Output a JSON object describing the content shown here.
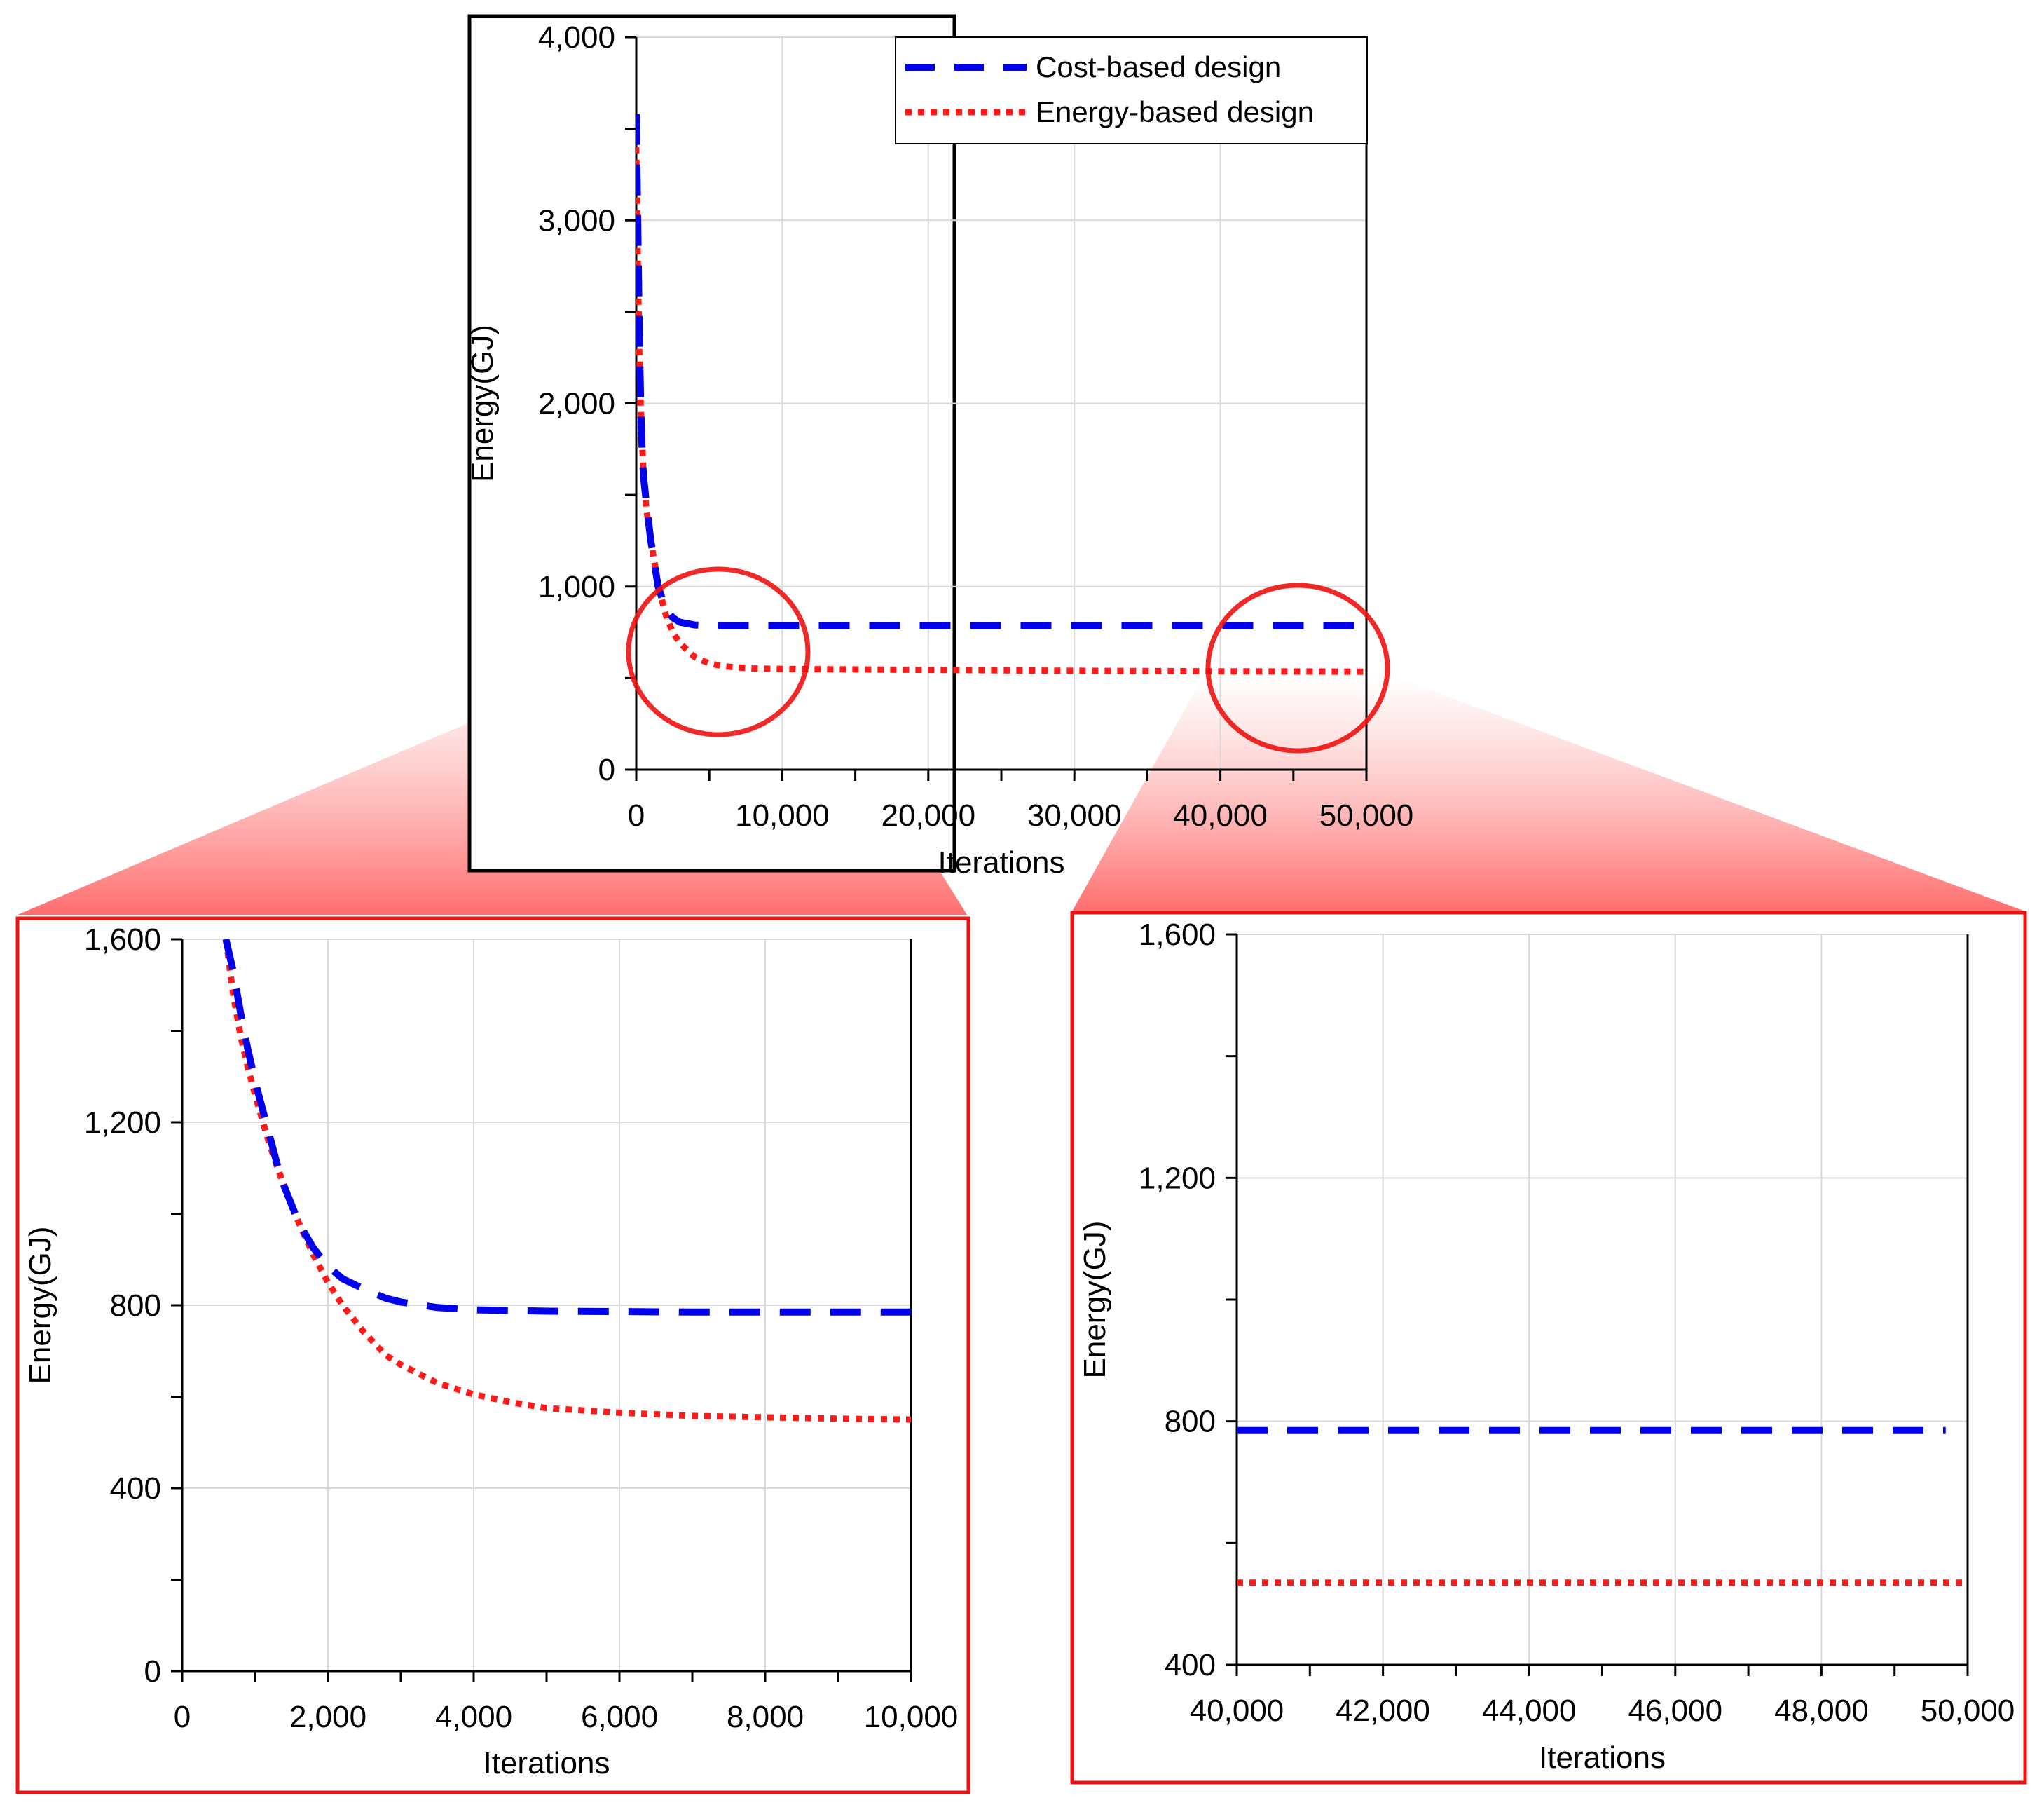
{
  "colors": {
    "cost": "#0000ee",
    "energy": "#ff1a1a",
    "frame_main": "#000000",
    "frame_inset": "#ee1111",
    "grid": "#d9d9d9",
    "zoom_circle": "#ee1111"
  },
  "chart_data": [
    {
      "id": "overview",
      "type": "line",
      "xlabel": "Iterations",
      "ylabel": "Energy(GJ)",
      "xlim": [
        0,
        50000
      ],
      "ylim": [
        0,
        4000
      ],
      "x_ticks": [
        "0",
        "10,000",
        "20,000",
        "30,000",
        "40,000",
        "50,000"
      ],
      "y_ticks": [
        "0",
        "1,000",
        "2,000",
        "3,000",
        "4,000"
      ],
      "grid": true,
      "legend_position": "top-right",
      "series": [
        {
          "name": "Cost-based design",
          "style": "dashed",
          "x": [
            0,
            100,
            200,
            300,
            400,
            500,
            700,
            1000,
            1500,
            2000,
            2500,
            3000,
            4000,
            5000,
            6000,
            10000,
            20000,
            30000,
            40000,
            50000
          ],
          "y": [
            3580,
            3000,
            2400,
            2000,
            1750,
            1600,
            1450,
            1250,
            1000,
            880,
            830,
            805,
            790,
            787,
            785,
            785,
            785,
            785,
            785,
            785
          ]
        },
        {
          "name": "Energy-based design",
          "style": "dotted",
          "x": [
            0,
            100,
            200,
            300,
            500,
            700,
            1000,
            1500,
            2000,
            2500,
            3000,
            4000,
            5000,
            6000,
            7000,
            8000,
            10000,
            20000,
            30000,
            40000,
            50000
          ],
          "y": [
            3400,
            2800,
            2300,
            2000,
            1600,
            1420,
            1250,
            1010,
            850,
            750,
            690,
            615,
            580,
            565,
            558,
            553,
            550,
            545,
            540,
            537,
            535
          ]
        }
      ]
    },
    {
      "id": "zoom-early",
      "type": "line",
      "xlabel": "Iterations",
      "ylabel": "Energy(GJ)",
      "xlim": [
        0,
        10000
      ],
      "ylim": [
        0,
        1600
      ],
      "x_ticks": [
        "0",
        "2,000",
        "4,000",
        "6,000",
        "8,000",
        "10,000"
      ],
      "y_ticks": [
        "0",
        "400",
        "800",
        "1,200",
        "1,600"
      ],
      "grid": true,
      "series": [
        {
          "name": "Cost-based design",
          "style": "dashed",
          "x": [
            600,
            700,
            800,
            900,
            1000,
            1100,
            1200,
            1300,
            1400,
            1500,
            1600,
            1800,
            2000,
            2200,
            2500,
            2800,
            3000,
            3500,
            4000,
            5000,
            6000,
            7000,
            8000,
            9000,
            10000
          ],
          "y": [
            1600,
            1530,
            1440,
            1360,
            1290,
            1230,
            1170,
            1110,
            1060,
            1020,
            980,
            925,
            885,
            858,
            835,
            815,
            807,
            795,
            790,
            787,
            786,
            785,
            785,
            785,
            785
          ]
        },
        {
          "name": "Energy-based design",
          "style": "dotted",
          "x": [
            600,
            700,
            800,
            900,
            1000,
            1200,
            1400,
            1600,
            1800,
            2000,
            2200,
            2500,
            2800,
            3000,
            3500,
            4000,
            4500,
            5000,
            6000,
            7000,
            8000,
            9000,
            10000
          ],
          "y": [
            1600,
            1480,
            1390,
            1320,
            1260,
            1150,
            1060,
            980,
            910,
            850,
            800,
            740,
            690,
            670,
            630,
            605,
            588,
            575,
            565,
            558,
            555,
            552,
            550
          ]
        }
      ]
    },
    {
      "id": "zoom-late",
      "type": "line",
      "xlabel": "Iterations",
      "ylabel": "Energy(GJ)",
      "xlim": [
        40000,
        50000
      ],
      "ylim": [
        400,
        1600
      ],
      "x_ticks": [
        "40,000",
        "42,000",
        "44,000",
        "46,000",
        "48,000",
        "50,000"
      ],
      "y_ticks": [
        "400",
        "800",
        "1,200",
        "1,600"
      ],
      "grid": true,
      "series": [
        {
          "name": "Cost-based design",
          "style": "dashed",
          "x": [
            40000,
            49700
          ],
          "y": [
            785,
            785
          ]
        },
        {
          "name": "Energy-based design",
          "style": "dotted",
          "x": [
            40000,
            50000
          ],
          "y": [
            535,
            535
          ]
        }
      ]
    }
  ]
}
